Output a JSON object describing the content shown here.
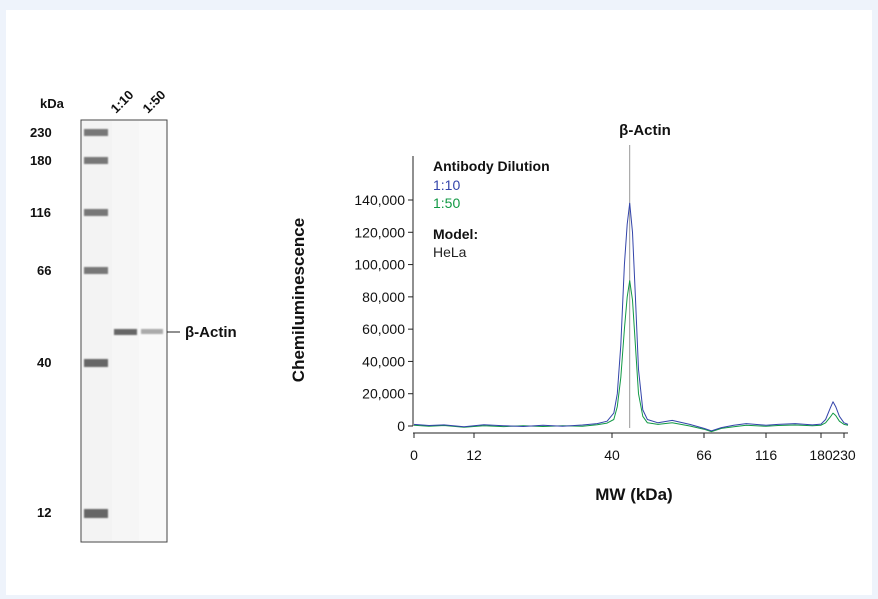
{
  "gel": {
    "unit_label": "kDa",
    "lane_labels": [
      "1:10",
      "1:50"
    ],
    "ladder_marks": [
      "230",
      "180",
      "116",
      "66",
      "40",
      "12"
    ],
    "band_label": "β-Actin"
  },
  "chart_data": {
    "type": "line",
    "title": "β-Actin",
    "xlabel": "MW (kDa)",
    "ylabel": "Chemiluminescence",
    "x_scale": "log",
    "x_ticks": [
      "0",
      "12",
      "40",
      "66",
      "116",
      "180",
      "230"
    ],
    "x_tick_values": [
      0,
      12,
      40,
      66,
      116,
      180,
      230
    ],
    "ylim": [
      0,
      150000
    ],
    "y_ticks": [
      "0",
      "20,000",
      "40,000",
      "60,000",
      "80,000",
      "100,000",
      "120,000",
      "140,000"
    ],
    "y_tick_values": [
      0,
      20000,
      40000,
      60000,
      80000,
      100000,
      120000,
      140000
    ],
    "peak_marker_x": 45,
    "legend": {
      "heading": "Antibody Dilution",
      "model_heading": "Model:",
      "model_value": "HeLa"
    },
    "series": [
      {
        "name": "1:10",
        "color": "#3344aa",
        "points": [
          [
            0,
            1000
          ],
          [
            3,
            300
          ],
          [
            6,
            700
          ],
          [
            10,
            -500
          ],
          [
            14,
            800
          ],
          [
            18,
            200
          ],
          [
            22,
            -300
          ],
          [
            26,
            500
          ],
          [
            30,
            -200
          ],
          [
            34,
            600
          ],
          [
            37,
            1500
          ],
          [
            39,
            3000
          ],
          [
            40.5,
            8000
          ],
          [
            41.5,
            20000
          ],
          [
            42.5,
            50000
          ],
          [
            43.5,
            100000
          ],
          [
            44.3,
            125000
          ],
          [
            45,
            138000
          ],
          [
            45.8,
            120000
          ],
          [
            46.6,
            80000
          ],
          [
            47.5,
            35000
          ],
          [
            48.7,
            10000
          ],
          [
            50,
            4000
          ],
          [
            53,
            2000
          ],
          [
            57,
            3500
          ],
          [
            62,
            1000
          ],
          [
            66,
            -1500
          ],
          [
            72,
            -3000
          ],
          [
            80,
            -1000
          ],
          [
            90,
            500
          ],
          [
            100,
            1500
          ],
          [
            116,
            500
          ],
          [
            130,
            1000
          ],
          [
            150,
            1500
          ],
          [
            170,
            700
          ],
          [
            180,
            1200
          ],
          [
            190,
            4000
          ],
          [
            200,
            11000
          ],
          [
            206,
            15000
          ],
          [
            212,
            12000
          ],
          [
            220,
            6000
          ],
          [
            230,
            2000
          ],
          [
            240,
            1000
          ]
        ]
      },
      {
        "name": "1:50",
        "color": "#119944",
        "points": [
          [
            0,
            500
          ],
          [
            3,
            -200
          ],
          [
            6,
            300
          ],
          [
            10,
            -800
          ],
          [
            14,
            200
          ],
          [
            18,
            -400
          ],
          [
            22,
            100
          ],
          [
            26,
            -300
          ],
          [
            30,
            200
          ],
          [
            34,
            -200
          ],
          [
            37,
            800
          ],
          [
            39,
            1800
          ],
          [
            40.5,
            4000
          ],
          [
            41.5,
            12000
          ],
          [
            42.5,
            30000
          ],
          [
            43.5,
            60000
          ],
          [
            44.3,
            80000
          ],
          [
            45,
            90000
          ],
          [
            45.8,
            78000
          ],
          [
            46.6,
            50000
          ],
          [
            47.5,
            20000
          ],
          [
            48.7,
            6000
          ],
          [
            50,
            2000
          ],
          [
            53,
            1000
          ],
          [
            57,
            2000
          ],
          [
            62,
            0
          ],
          [
            66,
            -2000
          ],
          [
            72,
            -3500
          ],
          [
            80,
            -1500
          ],
          [
            90,
            -500
          ],
          [
            100,
            500
          ],
          [
            116,
            -200
          ],
          [
            130,
            300
          ],
          [
            150,
            600
          ],
          [
            170,
            200
          ],
          [
            180,
            500
          ],
          [
            190,
            2000
          ],
          [
            200,
            5500
          ],
          [
            206,
            8000
          ],
          [
            212,
            6500
          ],
          [
            220,
            3000
          ],
          [
            230,
            1000
          ],
          [
            240,
            500
          ]
        ]
      }
    ]
  }
}
